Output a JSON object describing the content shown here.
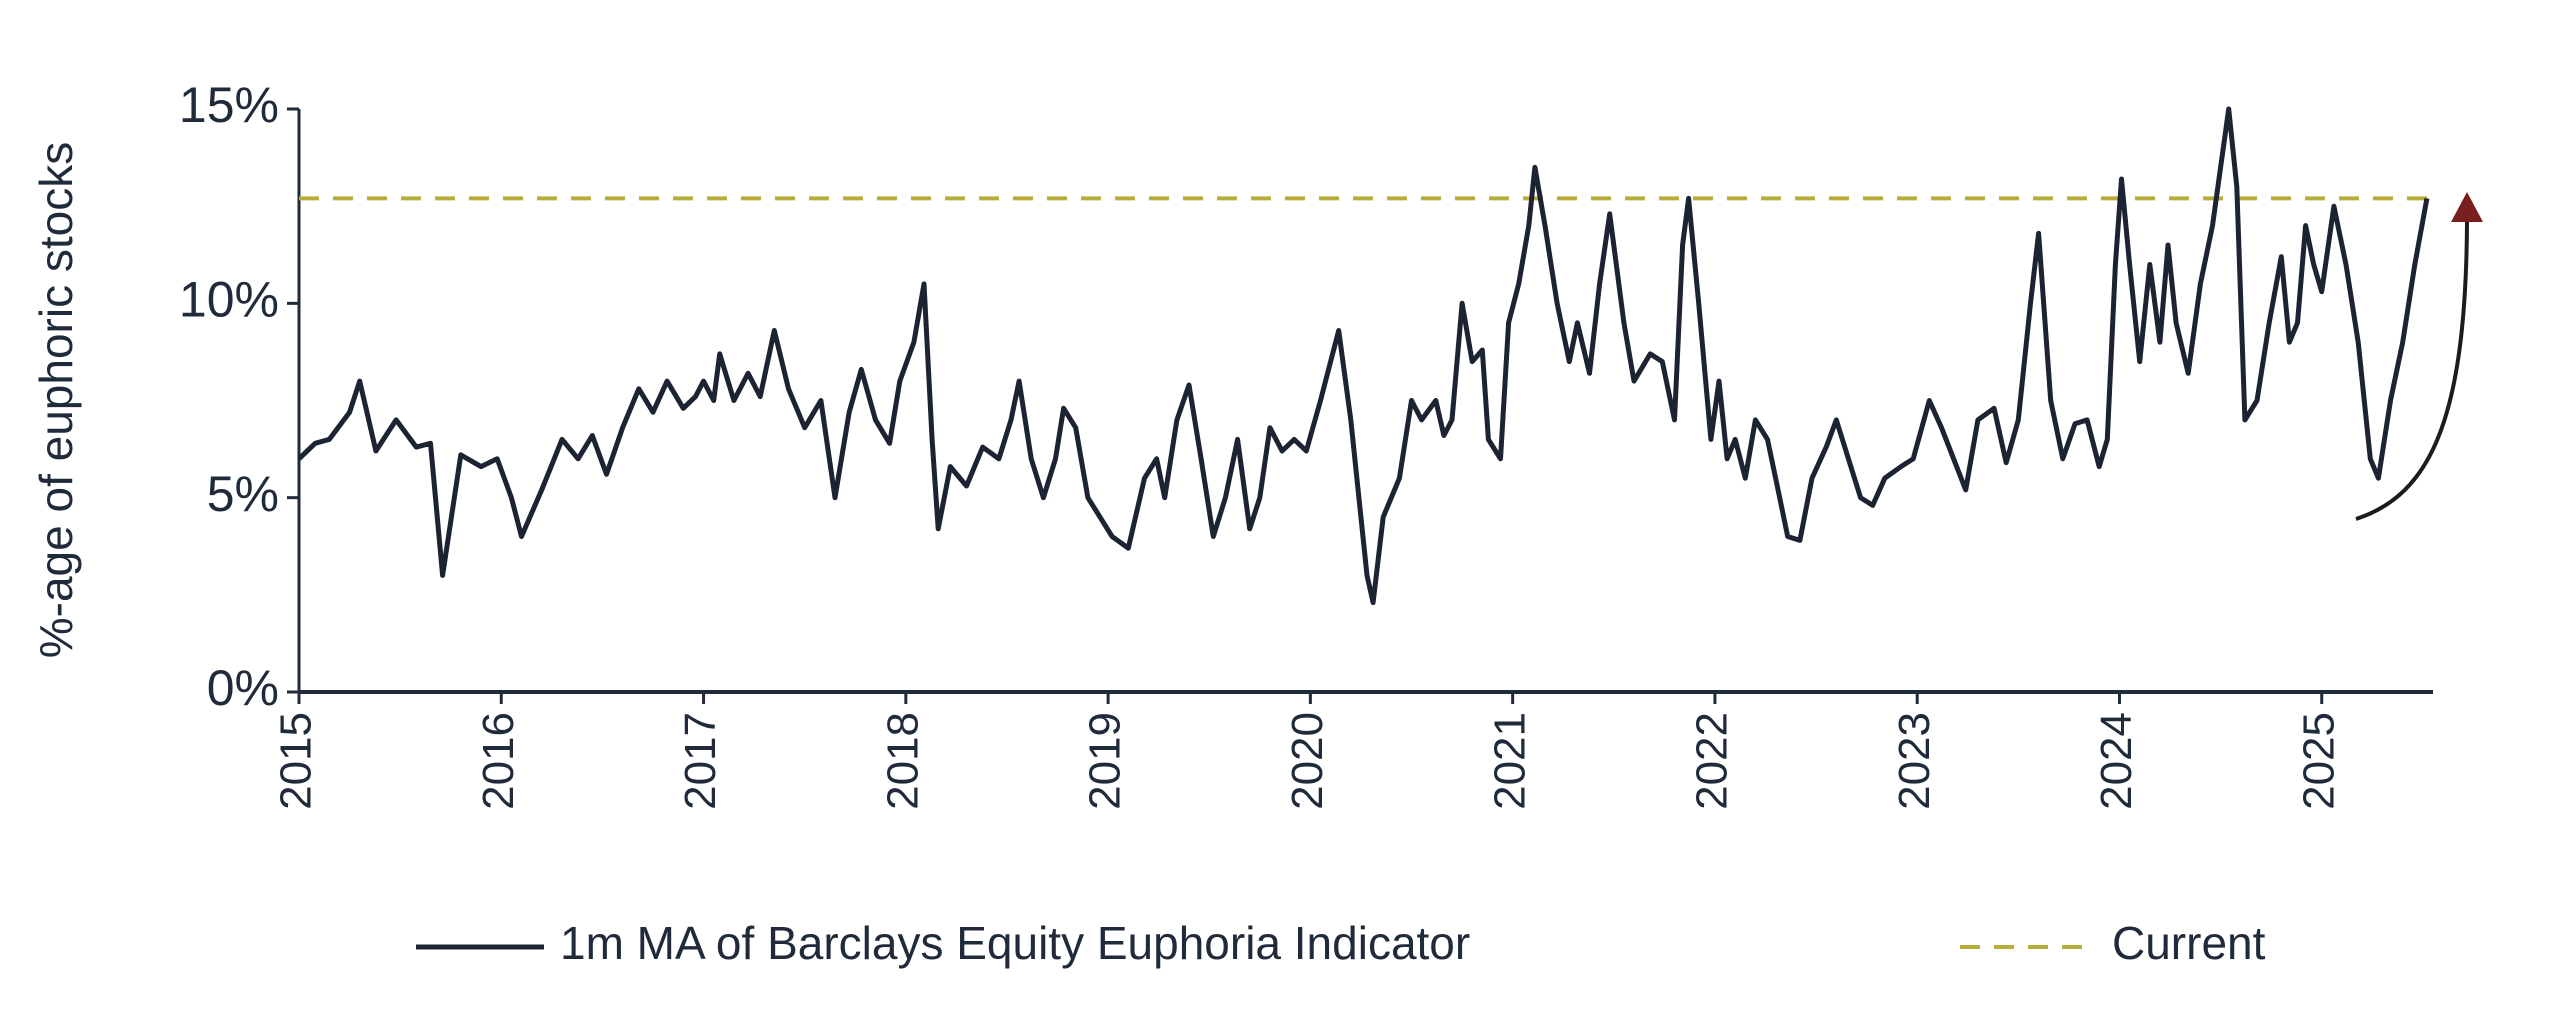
{
  "chart_data": {
    "type": "line",
    "y_label": "%-age of euphoric stocks",
    "xlim": [
      2015,
      2025.55
    ],
    "xticks": [
      2015,
      2016,
      2017,
      2018,
      2019,
      2020,
      2021,
      2022,
      2023,
      2024,
      2025
    ],
    "ylim": [
      0,
      15
    ],
    "yticks": [
      {
        "value": 0,
        "label": "0%"
      },
      {
        "value": 5,
        "label": "5%"
      },
      {
        "value": 10,
        "label": "10%"
      },
      {
        "value": 15,
        "label": "15%"
      }
    ],
    "grid": false,
    "x": [
      2015.0,
      2015.08,
      2015.15,
      2015.25,
      2015.3,
      2015.38,
      2015.48,
      2015.58,
      2015.65,
      2015.71,
      2015.8,
      2015.9,
      2015.98,
      2016.05,
      2016.1,
      2016.2,
      2016.3,
      2016.38,
      2016.45,
      2016.52,
      2016.6,
      2016.68,
      2016.75,
      2016.82,
      2016.9,
      2016.96,
      2017.0,
      2017.05,
      2017.08,
      2017.15,
      2017.22,
      2017.28,
      2017.35,
      2017.42,
      2017.5,
      2017.58,
      2017.65,
      2017.72,
      2017.78,
      2017.85,
      2017.92,
      2017.97,
      2018.04,
      2018.09,
      2018.13,
      2018.16,
      2018.22,
      2018.3,
      2018.38,
      2018.46,
      2018.52,
      2018.56,
      2018.62,
      2018.68,
      2018.74,
      2018.78,
      2018.84,
      2018.9,
      2018.96,
      2019.02,
      2019.1,
      2019.18,
      2019.24,
      2019.28,
      2019.34,
      2019.4,
      2019.46,
      2019.52,
      2019.58,
      2019.64,
      2019.7,
      2019.75,
      2019.8,
      2019.86,
      2019.92,
      2019.98,
      2020.05,
      2020.1,
      2020.14,
      2020.2,
      2020.24,
      2020.28,
      2020.31,
      2020.36,
      2020.44,
      2020.5,
      2020.55,
      2020.62,
      2020.66,
      2020.7,
      2020.75,
      2020.8,
      2020.85,
      2020.88,
      2020.94,
      2020.98,
      2021.03,
      2021.08,
      2021.11,
      2021.16,
      2021.22,
      2021.28,
      2021.32,
      2021.38,
      2021.43,
      2021.48,
      2021.55,
      2021.6,
      2021.68,
      2021.74,
      2021.8,
      2021.84,
      2021.87,
      2021.92,
      2021.98,
      2022.02,
      2022.06,
      2022.1,
      2022.15,
      2022.2,
      2022.26,
      2022.32,
      2022.36,
      2022.42,
      2022.48,
      2022.55,
      2022.6,
      2022.66,
      2022.72,
      2022.78,
      2022.84,
      2022.92,
      2022.98,
      2023.06,
      2023.12,
      2023.18,
      2023.24,
      2023.3,
      2023.38,
      2023.44,
      2023.5,
      2023.56,
      2023.6,
      2023.66,
      2023.72,
      2023.78,
      2023.84,
      2023.9,
      2023.94,
      2023.98,
      2024.01,
      2024.05,
      2024.1,
      2024.15,
      2024.2,
      2024.24,
      2024.28,
      2024.34,
      2024.4,
      2024.46,
      2024.5,
      2024.54,
      2024.58,
      2024.62,
      2024.68,
      2024.74,
      2024.8,
      2024.84,
      2024.88,
      2024.92,
      2024.96,
      2025.0,
      2025.06,
      2025.12,
      2025.18,
      2025.24,
      2025.28,
      2025.34,
      2025.4,
      2025.46,
      2025.52
    ],
    "series": [
      {
        "name": "1m MA of Barclays Equity Euphoria Indicator",
        "color": "#1c2333",
        "values": [
          6.0,
          6.4,
          6.5,
          7.2,
          8.0,
          6.2,
          7.0,
          6.3,
          6.4,
          3.0,
          6.1,
          5.8,
          6.0,
          5.0,
          4.0,
          5.2,
          6.5,
          6.0,
          6.6,
          5.6,
          6.8,
          7.8,
          7.2,
          8.0,
          7.3,
          7.6,
          8.0,
          7.5,
          8.7,
          7.5,
          8.2,
          7.6,
          9.3,
          7.8,
          6.8,
          7.5,
          5.0,
          7.2,
          8.3,
          7.0,
          6.4,
          8.0,
          9.0,
          10.5,
          6.5,
          4.2,
          5.8,
          5.3,
          6.3,
          6.0,
          7.0,
          8.0,
          6.0,
          5.0,
          6.0,
          7.3,
          6.8,
          5.0,
          4.5,
          4.0,
          3.7,
          5.5,
          6.0,
          5.0,
          7.0,
          7.9,
          6.0,
          4.0,
          5.0,
          6.5,
          4.2,
          5.0,
          6.8,
          6.2,
          6.5,
          6.2,
          7.5,
          8.5,
          9.3,
          7.0,
          5.0,
          3.0,
          2.3,
          4.5,
          5.5,
          7.5,
          7.0,
          7.5,
          6.6,
          7.0,
          10.0,
          8.5,
          8.8,
          6.5,
          6.0,
          9.5,
          10.5,
          12.0,
          13.5,
          12.0,
          10.0,
          8.5,
          9.5,
          8.2,
          10.5,
          12.3,
          9.5,
          8.0,
          8.7,
          8.5,
          7.0,
          11.5,
          12.7,
          10.0,
          6.5,
          8.0,
          6.0,
          6.5,
          5.5,
          7.0,
          6.5,
          5.0,
          4.0,
          3.9,
          5.5,
          6.3,
          7.0,
          6.0,
          5.0,
          4.8,
          5.5,
          5.8,
          6.0,
          7.5,
          6.8,
          6.0,
          5.2,
          7.0,
          7.3,
          5.9,
          7.0,
          10.0,
          11.8,
          7.5,
          6.0,
          6.9,
          7.0,
          5.8,
          6.5,
          11.0,
          13.2,
          11.0,
          8.5,
          11.0,
          9.0,
          11.5,
          9.5,
          8.2,
          10.5,
          12.0,
          13.5,
          15.0,
          13.0,
          7.0,
          7.5,
          9.5,
          11.2,
          9.0,
          9.5,
          12.0,
          11.0,
          10.3,
          12.5,
          11.0,
          9.0,
          6.0,
          5.5,
          7.5,
          9.0,
          11.0,
          12.7
        ]
      }
    ],
    "reference_lines": [
      {
        "name": "Current",
        "value": 12.7,
        "color": "#b8ad3c",
        "dashed": true
      }
    ]
  }
}
